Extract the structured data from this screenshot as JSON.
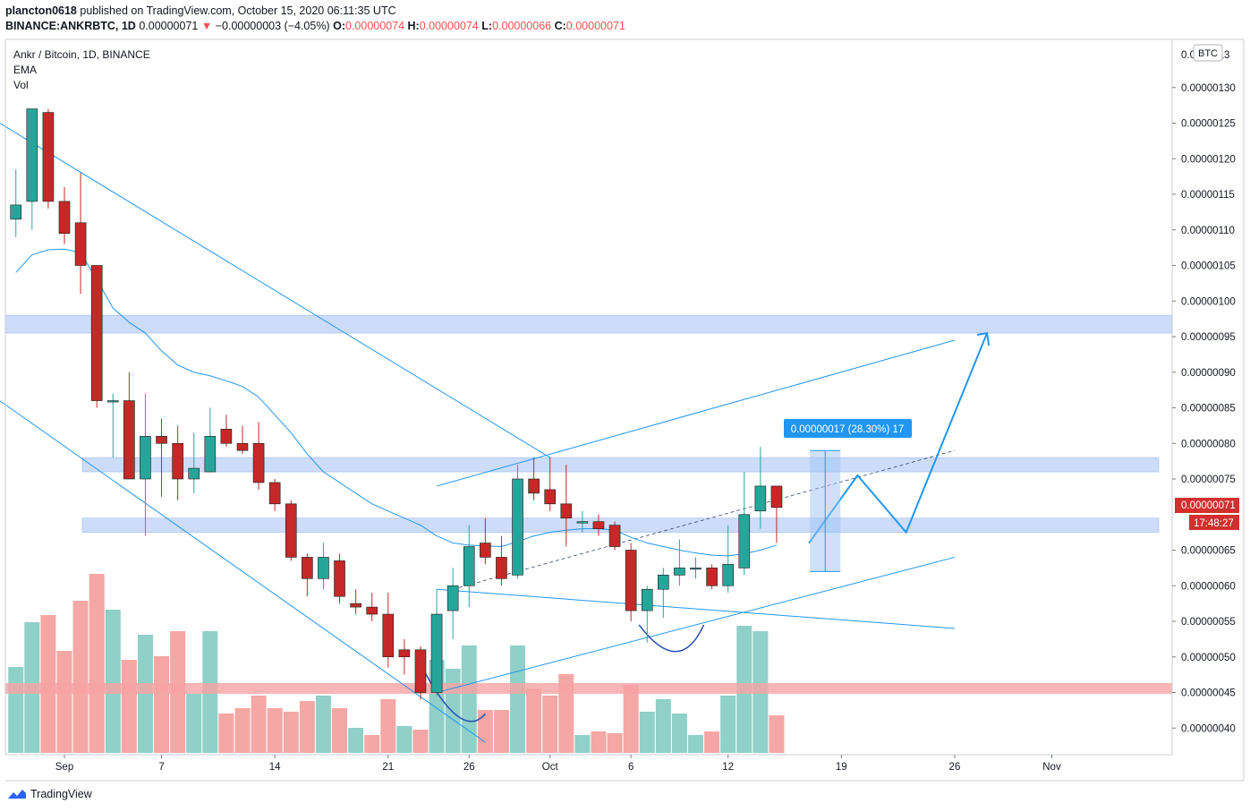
{
  "header": {
    "publisher": "plancton0618",
    "published_text": "published on TradingView.com, October 15, 2020 06:11:35 UTC",
    "symbol_line": "BINANCE:ANKRBTC, 1D",
    "last": "0.00000071",
    "change": "−0.00000003 (−4.05%)",
    "o_label": "O:",
    "o_val": "0.00000074",
    "h_label": "H:",
    "h_val": "0.00000074",
    "l_label": "L:",
    "l_val": "0.00000066",
    "c_label": "C:",
    "c_val": "0.00000071"
  },
  "legend": {
    "title": "Ankr / Bitcoin, 1D, BINANCE",
    "ema": "EMA",
    "vol": "Vol"
  },
  "footer": {
    "brand": "TradingView"
  },
  "colors": {
    "up": "#26a69a",
    "down": "#c62828",
    "vol_up": "#8fd0c8",
    "vol_down": "#f4a7a4",
    "line": "#2196f3",
    "zone": "#bbd0f7",
    "red_zone": "#f7a3a3"
  },
  "chart_data": {
    "type": "candlestick",
    "title": "Ankr / Bitcoin, 1D, BINANCE",
    "currency_badge": "BTC",
    "y_axis_top_label": "0.0000013",
    "y_ticks": [
      "0.00000130",
      "0.00000125",
      "0.00000120",
      "0.00000115",
      "0.00000110",
      "0.00000105",
      "0.00000100",
      "0.00000095",
      "0.00000090",
      "0.00000085",
      "0.00000080",
      "0.00000075",
      "0.00000065",
      "0.00000060",
      "0.00000055",
      "0.00000050",
      "0.00000045",
      "0.00000040"
    ],
    "x_ticks": [
      {
        "label": "Sep",
        "day": 1
      },
      {
        "label": "7",
        "day": 7
      },
      {
        "label": "14",
        "day": 14
      },
      {
        "label": "21",
        "day": 21
      },
      {
        "label": "26",
        "day": 26
      },
      {
        "label": "Oct",
        "day": 31
      },
      {
        "label": "6",
        "day": 36
      },
      {
        "label": "12",
        "day": 42
      },
      {
        "label": "19",
        "day": 49
      },
      {
        "label": "26",
        "day": 56
      },
      {
        "label": "Nov",
        "day": 62
      }
    ],
    "last_price_label": "0.00000071",
    "countdown": "17:48:27",
    "measure_label": "0.00000017 (28.30%) 17",
    "candles": [
      {
        "day": -2,
        "o": 111.5,
        "h": 118.5,
        "l": 109.0,
        "c": 113.5
      },
      {
        "day": -1,
        "o": 114.0,
        "h": 127.0,
        "l": 110.0,
        "c": 127.0
      },
      {
        "day": 0,
        "o": 126.5,
        "h": 127.0,
        "l": 113.0,
        "c": 114.0
      },
      {
        "day": 1,
        "o": 114.0,
        "h": 116.0,
        "l": 108.0,
        "c": 109.5
      },
      {
        "day": 2,
        "o": 111.0,
        "h": 118.0,
        "l": 101.0,
        "c": 105.0
      },
      {
        "day": 3,
        "o": 105.0,
        "h": 105.0,
        "l": 85.0,
        "c": 86.0
      },
      {
        "day": 4,
        "o": 86.0,
        "h": 87.0,
        "l": 78.0,
        "c": 86.0
      },
      {
        "day": 5,
        "o": 86.0,
        "h": 90.0,
        "l": 75.0,
        "c": 75.0
      },
      {
        "day": 6,
        "o": 75.0,
        "h": 87.0,
        "l": 67.0,
        "c": 81.0
      },
      {
        "day": 7,
        "o": 81.0,
        "h": 83.5,
        "l": 72.5,
        "c": 80.0
      },
      {
        "day": 8,
        "o": 80.0,
        "h": 82.5,
        "l": 72.0,
        "c": 75.0
      },
      {
        "day": 9,
        "o": 75.0,
        "h": 81.5,
        "l": 73.0,
        "c": 76.5
      },
      {
        "day": 10,
        "o": 76.0,
        "h": 85.0,
        "l": 76.0,
        "c": 81.0
      },
      {
        "day": 11,
        "o": 82.0,
        "h": 84.0,
        "l": 79.5,
        "c": 80.0
      },
      {
        "day": 12,
        "o": 80.0,
        "h": 82.5,
        "l": 78.5,
        "c": 79.0
      },
      {
        "day": 13,
        "o": 80.0,
        "h": 83.0,
        "l": 73.5,
        "c": 74.5
      },
      {
        "day": 14,
        "o": 74.5,
        "h": 75.0,
        "l": 70.5,
        "c": 71.5
      },
      {
        "day": 15,
        "o": 71.5,
        "h": 72.0,
        "l": 63.5,
        "c": 64.0
      },
      {
        "day": 16,
        "o": 64.0,
        "h": 64.5,
        "l": 58.5,
        "c": 61.0
      },
      {
        "day": 17,
        "o": 61.0,
        "h": 66.0,
        "l": 59.5,
        "c": 64.0
      },
      {
        "day": 18,
        "o": 63.5,
        "h": 64.5,
        "l": 57.5,
        "c": 58.5
      },
      {
        "day": 19,
        "o": 57.5,
        "h": 59.5,
        "l": 56.0,
        "c": 57.0
      },
      {
        "day": 20,
        "o": 57.0,
        "h": 59.0,
        "l": 55.0,
        "c": 56.0
      },
      {
        "day": 21,
        "o": 56.0,
        "h": 59.0,
        "l": 48.5,
        "c": 50.0
      },
      {
        "day": 22,
        "o": 51.0,
        "h": 52.5,
        "l": 47.5,
        "c": 50.0
      },
      {
        "day": 23,
        "o": 51.0,
        "h": 51.5,
        "l": 44.0,
        "c": 45.0
      },
      {
        "day": 24,
        "o": 45.0,
        "h": 59.5,
        "l": 44.5,
        "c": 56.0
      },
      {
        "day": 25,
        "o": 56.5,
        "h": 62.5,
        "l": 52.5,
        "c": 60.0
      },
      {
        "day": 26,
        "o": 60.0,
        "h": 68.5,
        "l": 57.0,
        "c": 65.5
      },
      {
        "day": 27,
        "o": 66.0,
        "h": 69.5,
        "l": 63.0,
        "c": 64.0
      },
      {
        "day": 28,
        "o": 64.0,
        "h": 67.0,
        "l": 60.0,
        "c": 61.0
      },
      {
        "day": 29,
        "o": 61.5,
        "h": 77.0,
        "l": 61.0,
        "c": 75.0
      },
      {
        "day": 30,
        "o": 75.0,
        "h": 78.0,
        "l": 72.0,
        "c": 73.0
      },
      {
        "day": 31,
        "o": 73.5,
        "h": 78.0,
        "l": 70.5,
        "c": 71.5
      },
      {
        "day": 32,
        "o": 71.5,
        "h": 77.0,
        "l": 65.5,
        "c": 69.5
      },
      {
        "day": 33,
        "o": 69.0,
        "h": 70.5,
        "l": 67.5,
        "c": 69.0
      },
      {
        "day": 34,
        "o": 69.0,
        "h": 70.0,
        "l": 67.0,
        "c": 68.0
      },
      {
        "day": 35,
        "o": 68.5,
        "h": 69.0,
        "l": 65.0,
        "c": 65.5
      },
      {
        "day": 36,
        "o": 65.0,
        "h": 66.0,
        "l": 55.0,
        "c": 56.5
      },
      {
        "day": 37,
        "o": 56.5,
        "h": 60.0,
        "l": 52.0,
        "c": 59.5
      },
      {
        "day": 38,
        "o": 59.5,
        "h": 62.5,
        "l": 55.5,
        "c": 61.5
      },
      {
        "day": 39,
        "o": 61.5,
        "h": 66.5,
        "l": 60.0,
        "c": 62.5
      },
      {
        "day": 40,
        "o": 62.5,
        "h": 64.0,
        "l": 61.0,
        "c": 62.5
      },
      {
        "day": 41,
        "o": 62.5,
        "h": 63.0,
        "l": 59.5,
        "c": 60.0
      },
      {
        "day": 42,
        "o": 60.0,
        "h": 68.5,
        "l": 59.0,
        "c": 63.0
      },
      {
        "day": 43,
        "o": 62.5,
        "h": 76.0,
        "l": 61.5,
        "c": 70.0
      },
      {
        "day": 44,
        "o": 70.5,
        "h": 79.5,
        "l": 68.0,
        "c": 74.0
      },
      {
        "day": 45,
        "o": 74.0,
        "h": 74.0,
        "l": 66.0,
        "c": 71.0
      }
    ],
    "volume": [
      {
        "day": -2,
        "v": 0.48,
        "up": true
      },
      {
        "day": -1,
        "v": 0.73,
        "up": true
      },
      {
        "day": 0,
        "v": 0.77,
        "up": false
      },
      {
        "day": 1,
        "v": 0.57,
        "up": false
      },
      {
        "day": 2,
        "v": 0.85,
        "up": false
      },
      {
        "day": 3,
        "v": 1.0,
        "up": false
      },
      {
        "day": 4,
        "v": 0.8,
        "up": true
      },
      {
        "day": 5,
        "v": 0.52,
        "up": false
      },
      {
        "day": 6,
        "v": 0.66,
        "up": true
      },
      {
        "day": 7,
        "v": 0.54,
        "up": false
      },
      {
        "day": 8,
        "v": 0.68,
        "up": false
      },
      {
        "day": 9,
        "v": 0.33,
        "up": true
      },
      {
        "day": 10,
        "v": 0.68,
        "up": true
      },
      {
        "day": 11,
        "v": 0.22,
        "up": false
      },
      {
        "day": 12,
        "v": 0.25,
        "up": false
      },
      {
        "day": 13,
        "v": 0.32,
        "up": false
      },
      {
        "day": 14,
        "v": 0.25,
        "up": false
      },
      {
        "day": 15,
        "v": 0.23,
        "up": false
      },
      {
        "day": 16,
        "v": 0.29,
        "up": false
      },
      {
        "day": 17,
        "v": 0.32,
        "up": true
      },
      {
        "day": 18,
        "v": 0.25,
        "up": false
      },
      {
        "day": 19,
        "v": 0.14,
        "up": true
      },
      {
        "day": 20,
        "v": 0.1,
        "up": false
      },
      {
        "day": 21,
        "v": 0.3,
        "up": false
      },
      {
        "day": 22,
        "v": 0.15,
        "up": true
      },
      {
        "day": 23,
        "v": 0.13,
        "up": false
      },
      {
        "day": 24,
        "v": 0.52,
        "up": true
      },
      {
        "day": 25,
        "v": 0.47,
        "up": true
      },
      {
        "day": 26,
        "v": 0.6,
        "up": true
      },
      {
        "day": 27,
        "v": 0.24,
        "up": false
      },
      {
        "day": 28,
        "v": 0.24,
        "up": false
      },
      {
        "day": 29,
        "v": 0.6,
        "up": true
      },
      {
        "day": 30,
        "v": 0.36,
        "up": false
      },
      {
        "day": 31,
        "v": 0.32,
        "up": false
      },
      {
        "day": 32,
        "v": 0.44,
        "up": false
      },
      {
        "day": 33,
        "v": 0.1,
        "up": true
      },
      {
        "day": 34,
        "v": 0.12,
        "up": false
      },
      {
        "day": 35,
        "v": 0.11,
        "up": false
      },
      {
        "day": 36,
        "v": 0.38,
        "up": false
      },
      {
        "day": 37,
        "v": 0.23,
        "up": true
      },
      {
        "day": 38,
        "v": 0.3,
        "up": true
      },
      {
        "day": 39,
        "v": 0.22,
        "up": true
      },
      {
        "day": 40,
        "v": 0.1,
        "up": true
      },
      {
        "day": 41,
        "v": 0.12,
        "up": false
      },
      {
        "day": 42,
        "v": 0.32,
        "up": true
      },
      {
        "day": 43,
        "v": 0.71,
        "up": true
      },
      {
        "day": 44,
        "v": 0.68,
        "up": true
      },
      {
        "day": 45,
        "v": 0.21,
        "up": false
      }
    ],
    "ema": [
      [
        -2,
        104.0
      ],
      [
        -1,
        106.5
      ],
      [
        0,
        107.2
      ],
      [
        1,
        107.3
      ],
      [
        2,
        106.8
      ],
      [
        3,
        103.0
      ],
      [
        4,
        99.0
      ],
      [
        5,
        97.0
      ],
      [
        6,
        95.5
      ],
      [
        7,
        93.0
      ],
      [
        8,
        91.0
      ],
      [
        9,
        90.0
      ],
      [
        10,
        89.5
      ],
      [
        11,
        88.8
      ],
      [
        12,
        88.0
      ],
      [
        13,
        86.5
      ],
      [
        14,
        84.0
      ],
      [
        15,
        81.5
      ],
      [
        16,
        78.5
      ],
      [
        17,
        76.0
      ],
      [
        18,
        74.5
      ],
      [
        19,
        73.0
      ],
      [
        20,
        71.5
      ],
      [
        21,
        70.5
      ],
      [
        22,
        69.5
      ],
      [
        23,
        68.5
      ],
      [
        24,
        67.0
      ],
      [
        25,
        66.0
      ],
      [
        26,
        65.7
      ],
      [
        27,
        65.6
      ],
      [
        28,
        65.5
      ],
      [
        29,
        66.2
      ],
      [
        30,
        67.0
      ],
      [
        31,
        67.5
      ],
      [
        32,
        67.8
      ],
      [
        33,
        68.0
      ],
      [
        34,
        68.0
      ],
      [
        35,
        67.8
      ],
      [
        36,
        66.8
      ],
      [
        37,
        66.0
      ],
      [
        38,
        65.5
      ],
      [
        39,
        65.0
      ],
      [
        40,
        64.6
      ],
      [
        41,
        64.3
      ],
      [
        42,
        64.2
      ],
      [
        43,
        64.5
      ],
      [
        44,
        65.0
      ],
      [
        45,
        65.7
      ]
    ],
    "zones": [
      {
        "low": 95.5,
        "high": 98.0
      },
      {
        "low": 76.0,
        "high": 78.0
      },
      {
        "low": 67.5,
        "high": 69.5
      }
    ],
    "red_zone_volume_level": 0.36
  }
}
